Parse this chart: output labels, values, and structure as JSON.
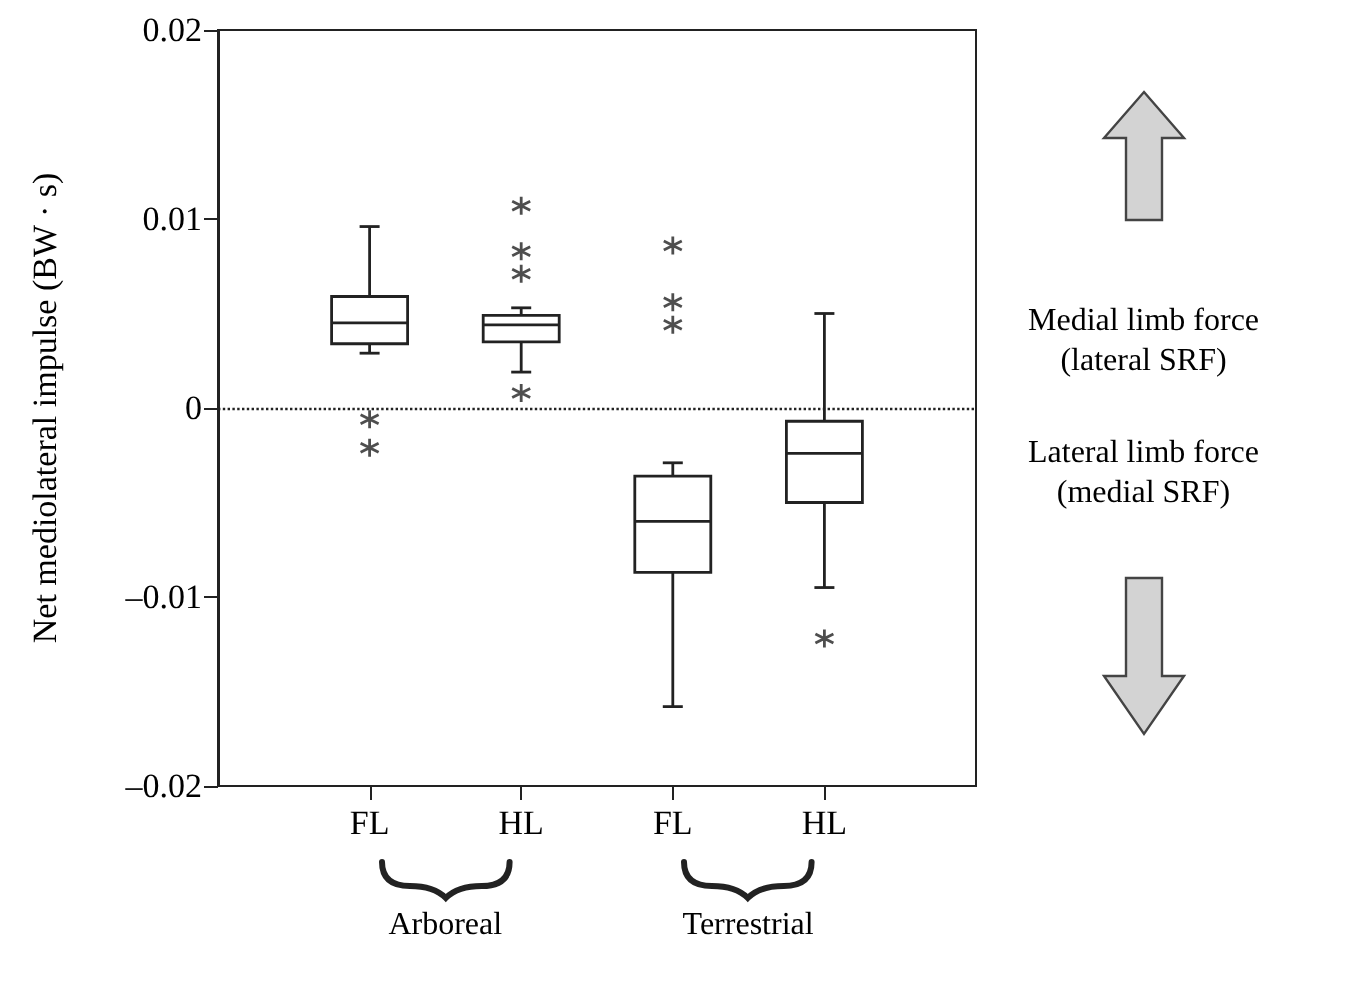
{
  "chart_data": {
    "type": "box",
    "ylabel": "Net mediolateral impulse (BW · s)",
    "categories": [
      "FL",
      "HL",
      "FL",
      "HL"
    ],
    "boxes": [
      {
        "low": 0.0029,
        "q1": 0.0034,
        "median": 0.0045,
        "q3": 0.0059,
        "high": 0.0096,
        "outliers": [
          -0.0006,
          -0.0021
        ]
      },
      {
        "low": 0.0019,
        "q1": 0.0035,
        "median": 0.0044,
        "q3": 0.0049,
        "high": 0.0053,
        "outliers": [
          0.0008,
          0.0071,
          0.0083,
          0.0107
        ]
      },
      {
        "low": -0.0158,
        "q1": -0.0087,
        "median": -0.006,
        "q3": -0.0036,
        "high": -0.0029,
        "outliers": [
          0.0044,
          0.0056,
          0.0086
        ]
      },
      {
        "low": -0.0095,
        "q1": -0.005,
        "median": -0.0024,
        "q3": -0.0007,
        "high": 0.005,
        "outliers": [
          -0.0122
        ]
      }
    ],
    "ylim": [
      -0.02,
      0.02
    ],
    "yticks": [
      {
        "value": -0.02,
        "label": "–0.02"
      },
      {
        "value": -0.01,
        "label": "–0.01"
      },
      0,
      0.01,
      0.02
    ],
    "ref_lines": [
      {
        "axis": "y",
        "value": 0,
        "line_style": "dotted"
      }
    ],
    "annotations": [
      "Arboreal",
      "Terrestrial",
      "Medial limb force\n(lateral SRF)",
      "Lateral limb force\n(medial SRF)"
    ],
    "grid": false
  }
}
